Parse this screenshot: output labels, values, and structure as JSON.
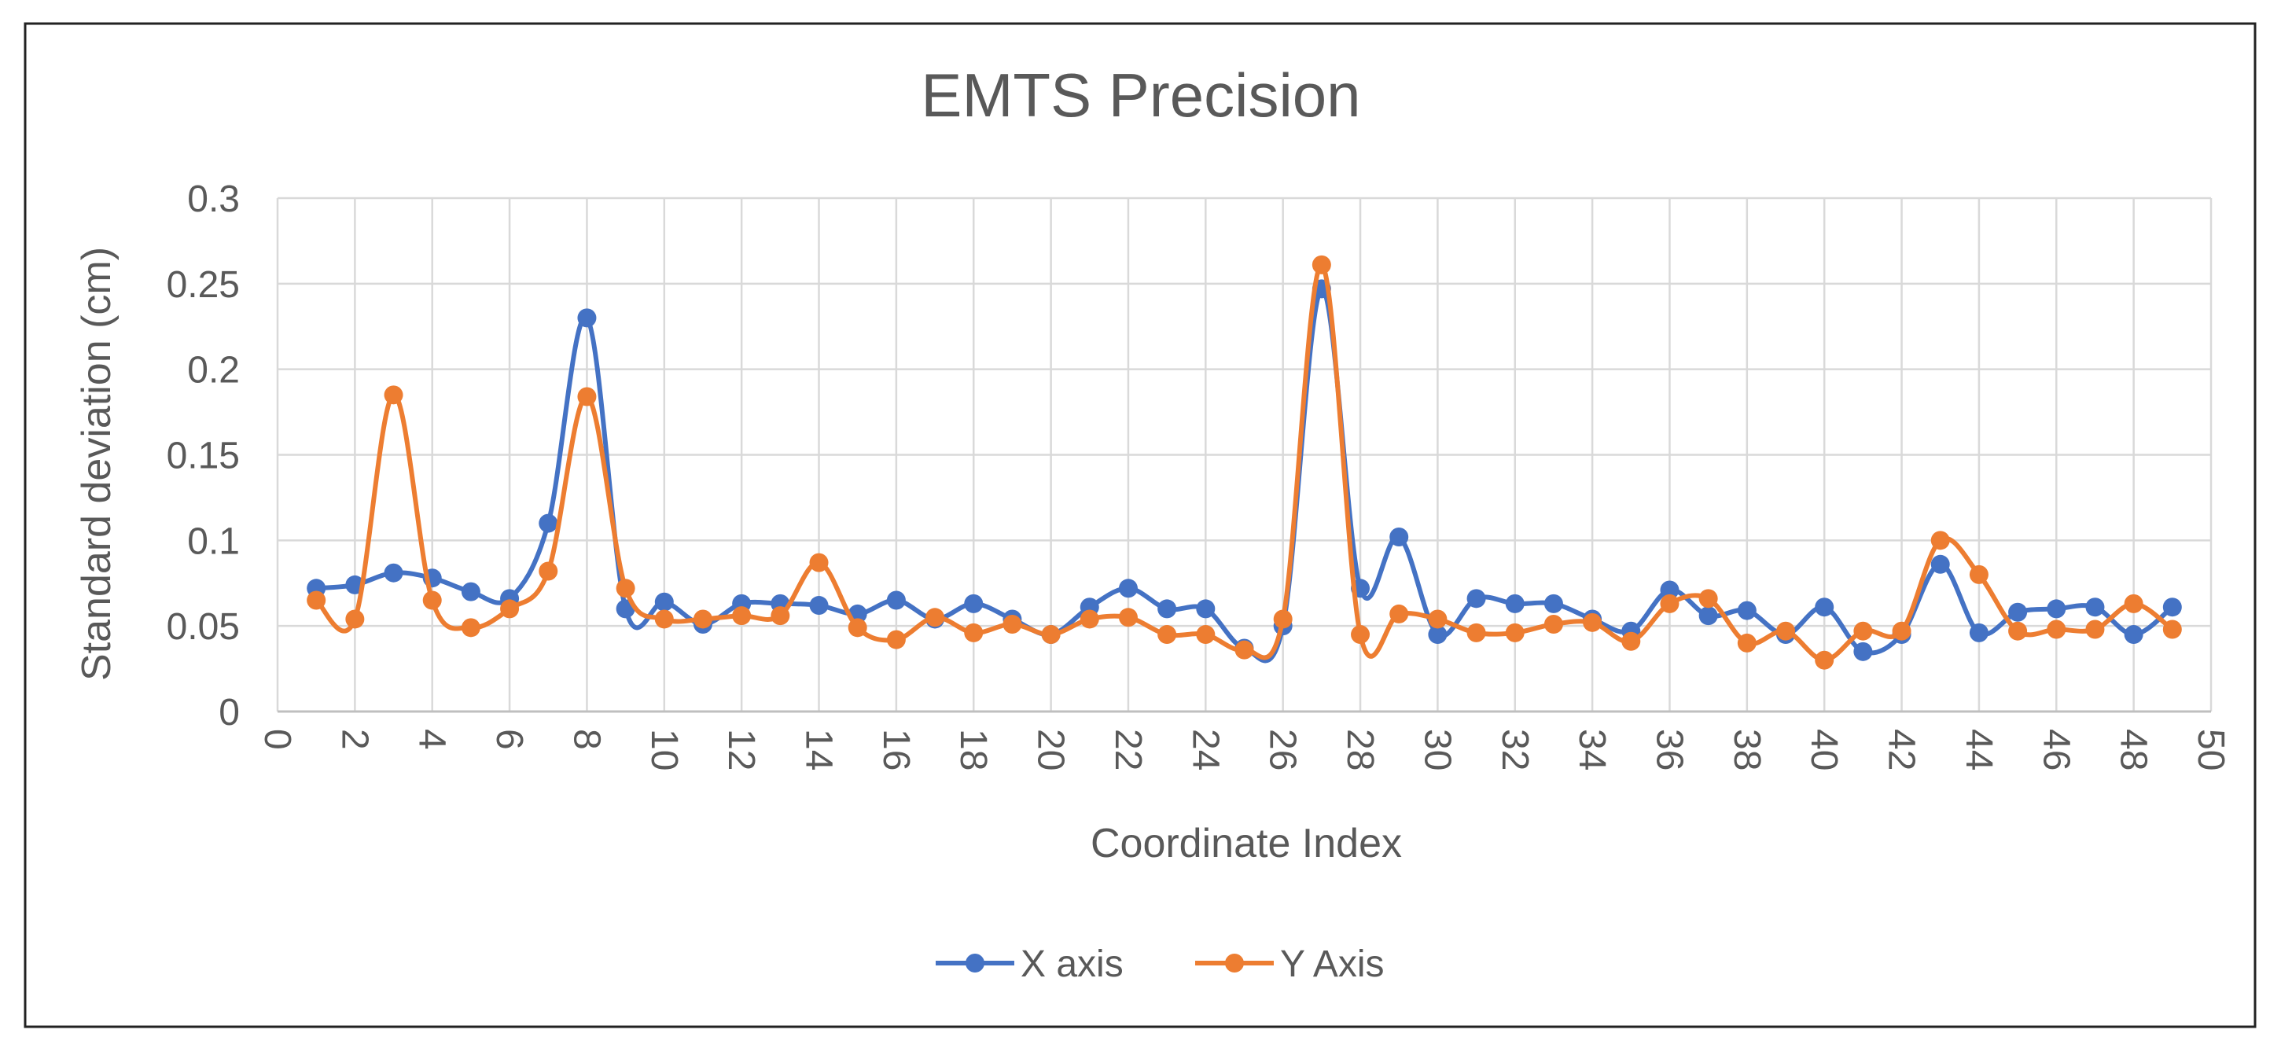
{
  "chart_data": {
    "type": "line",
    "smooth": true,
    "title": "EMTS Precision",
    "xlabel": "Coordinate Index",
    "ylabel": "Standard deviation (cm)",
    "xlim": [
      0,
      50
    ],
    "ylim": [
      0,
      0.3
    ],
    "x_ticks": [
      0,
      2,
      4,
      6,
      8,
      10,
      12,
      14,
      16,
      18,
      20,
      22,
      24,
      26,
      28,
      30,
      32,
      34,
      36,
      38,
      40,
      42,
      44,
      46,
      48,
      50
    ],
    "y_ticks": [
      0,
      0.05,
      0.1,
      0.15,
      0.2,
      0.25,
      0.3
    ],
    "y_tick_labels": [
      "0",
      "0.05",
      "0.1",
      "0.15",
      "0.2",
      "0.25",
      "0.3"
    ],
    "grid": true,
    "legend_position": "bottom",
    "x": [
      1,
      2,
      3,
      4,
      5,
      6,
      7,
      8,
      9,
      10,
      11,
      12,
      13,
      14,
      15,
      16,
      17,
      18,
      19,
      20,
      21,
      22,
      23,
      24,
      25,
      26,
      27,
      28,
      29,
      30,
      31,
      32,
      33,
      34,
      35,
      36,
      37,
      38,
      39,
      40,
      41,
      42,
      43,
      44,
      45,
      46,
      47,
      48,
      49
    ],
    "series": [
      {
        "name": "X axis",
        "color": "#4472c4",
        "values": [
          0.072,
          0.074,
          0.081,
          0.078,
          0.07,
          0.066,
          0.11,
          0.23,
          0.06,
          0.064,
          0.051,
          0.063,
          0.063,
          0.062,
          0.057,
          0.065,
          0.054,
          0.063,
          0.054,
          0.045,
          0.061,
          0.072,
          0.06,
          0.06,
          0.037,
          0.05,
          0.247,
          0.072,
          0.102,
          0.045,
          0.066,
          0.063,
          0.063,
          0.054,
          0.047,
          0.071,
          0.056,
          0.059,
          0.045,
          0.061,
          0.035,
          0.045,
          0.086,
          0.046,
          0.058,
          0.06,
          0.061,
          0.045,
          0.061
        ]
      },
      {
        "name": "Y Axis",
        "color": "#ed7d31",
        "values": [
          0.065,
          0.054,
          0.185,
          0.065,
          0.049,
          0.06,
          0.082,
          0.184,
          0.072,
          0.054,
          0.054,
          0.056,
          0.056,
          0.087,
          0.049,
          0.042,
          0.055,
          0.046,
          0.051,
          0.045,
          0.054,
          0.055,
          0.045,
          0.045,
          0.036,
          0.054,
          0.261,
          0.045,
          0.057,
          0.054,
          0.046,
          0.046,
          0.051,
          0.052,
          0.041,
          0.063,
          0.066,
          0.04,
          0.047,
          0.03,
          0.047,
          0.047,
          0.1,
          0.08,
          0.047,
          0.048,
          0.048,
          0.063,
          0.048
        ]
      }
    ]
  }
}
